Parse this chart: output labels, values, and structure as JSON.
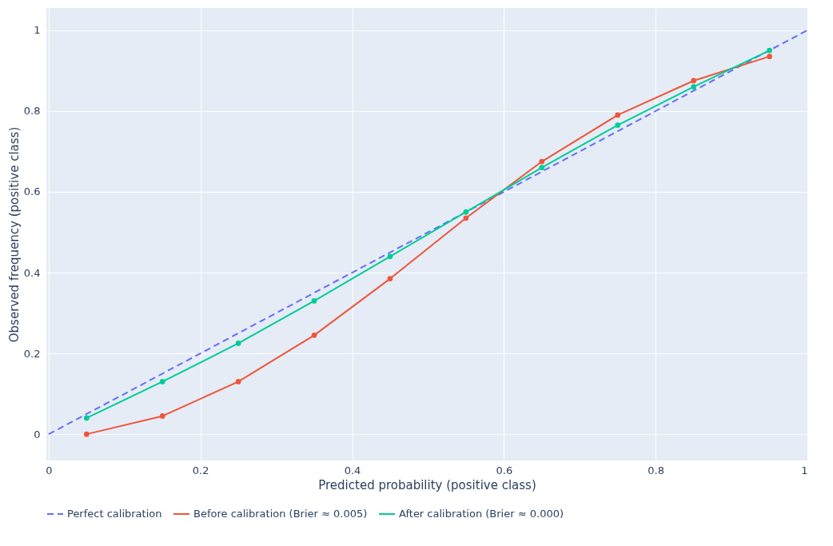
{
  "chart_data": {
    "type": "line",
    "xlabel": "Predicted probability (positive class)",
    "ylabel": "Observed frequency (positive class)",
    "xlim": [
      -0.003,
      1.0
    ],
    "ylim": [
      -0.065,
      1.055
    ],
    "xticks": [
      0,
      0.2,
      0.4,
      0.6,
      0.8,
      1
    ],
    "yticks": [
      0,
      0.2,
      0.4,
      0.6,
      0.8,
      1
    ],
    "grid": true,
    "legend": "bottom",
    "series": [
      {
        "name": "Perfect calibration",
        "color": "#636efa",
        "line_style": "dashed",
        "marker": "none",
        "x": [
          0,
          1
        ],
        "values": [
          0,
          1
        ]
      },
      {
        "name": "Before calibration (Brier ≈ 0.005)",
        "color": "#ef553b",
        "line_style": "solid",
        "marker": "circle",
        "x": [
          0.05,
          0.15,
          0.25,
          0.35,
          0.45,
          0.55,
          0.65,
          0.75,
          0.85,
          0.95
        ],
        "values": [
          0.0,
          0.045,
          0.13,
          0.245,
          0.385,
          0.535,
          0.675,
          0.79,
          0.875,
          0.935
        ]
      },
      {
        "name": "After calibration (Brier ≈ 0.000)",
        "color": "#00cc96",
        "line_style": "solid",
        "marker": "circle",
        "x": [
          0.05,
          0.15,
          0.25,
          0.35,
          0.45,
          0.55,
          0.65,
          0.75,
          0.85,
          0.95
        ],
        "values": [
          0.04,
          0.13,
          0.225,
          0.33,
          0.44,
          0.55,
          0.66,
          0.765,
          0.86,
          0.95
        ]
      }
    ]
  }
}
